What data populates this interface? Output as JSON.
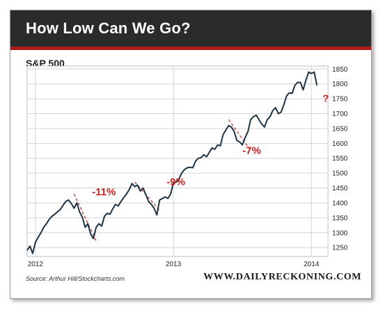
{
  "header": {
    "title": "How Low Can We Go?"
  },
  "footer": {
    "source": "Source:  Arthur Hill/Stockcharts.com",
    "brand": "WWW.DAILYRECKONING.COM"
  },
  "colors": {
    "banner": "#2b2b2b",
    "banner_rule": "#b11a1a",
    "line": "#1c3346",
    "annotation": "#d11f1f",
    "grid": "#d4d4d4"
  },
  "chart_data": {
    "type": "line",
    "title": "S&P 500",
    "xlabel": "",
    "ylabel": "",
    "xlim": [
      2011.94,
      2014.12
    ],
    "ylim": [
      1220,
      1860
    ],
    "y_ticks": [
      1250,
      1300,
      1350,
      1400,
      1450,
      1500,
      1550,
      1600,
      1650,
      1700,
      1750,
      1800,
      1850
    ],
    "x_ticks": [
      {
        "value": 2012,
        "label": "2012"
      },
      {
        "value": 2013,
        "label": "2013"
      },
      {
        "value": 2014,
        "label": "2014"
      }
    ],
    "grid": true,
    "y_axis_side": "right",
    "series": [
      {
        "x": [
          2011.94,
          2011.96,
          2011.98,
          2012.0,
          2012.02,
          2012.04,
          2012.06,
          2012.08,
          2012.1,
          2012.12,
          2012.14,
          2012.16,
          2012.18,
          2012.2,
          2012.22,
          2012.24,
          2012.26,
          2012.28,
          2012.3,
          2012.32,
          2012.34,
          2012.36,
          2012.38,
          2012.4,
          2012.42,
          2012.44,
          2012.46,
          2012.48,
          2012.5,
          2012.52,
          2012.54,
          2012.56,
          2012.58,
          2012.6,
          2012.62,
          2012.64,
          2012.66,
          2012.68,
          2012.7,
          2012.72,
          2012.74,
          2012.76,
          2012.78,
          2012.8,
          2012.82,
          2012.84,
          2012.86,
          2012.88,
          2012.9,
          2012.92,
          2012.94,
          2012.96,
          2012.98,
          2013.0,
          2013.02,
          2013.04,
          2013.06,
          2013.08,
          2013.1,
          2013.12,
          2013.14,
          2013.16,
          2013.18,
          2013.2,
          2013.22,
          2013.24,
          2013.26,
          2013.28,
          2013.3,
          2013.32,
          2013.34,
          2013.36,
          2013.38,
          2013.4,
          2013.42,
          2013.44,
          2013.46,
          2013.48,
          2013.5,
          2013.52,
          2013.54,
          2013.56,
          2013.58,
          2013.6,
          2013.62,
          2013.64,
          2013.66,
          2013.68,
          2013.7,
          2013.72,
          2013.74,
          2013.76,
          2013.78,
          2013.8,
          2013.82,
          2013.84,
          2013.86,
          2013.88,
          2013.9,
          2013.92,
          2013.94,
          2013.96,
          2013.98,
          2014.0,
          2014.02,
          2014.04
        ],
        "values": [
          1240,
          1255,
          1230,
          1268,
          1285,
          1300,
          1318,
          1330,
          1345,
          1355,
          1362,
          1370,
          1378,
          1392,
          1405,
          1410,
          1398,
          1382,
          1400,
          1370,
          1352,
          1318,
          1330,
          1295,
          1280,
          1318,
          1330,
          1322,
          1355,
          1365,
          1362,
          1380,
          1395,
          1390,
          1405,
          1418,
          1430,
          1445,
          1465,
          1455,
          1460,
          1440,
          1450,
          1428,
          1405,
          1395,
          1382,
          1360,
          1410,
          1415,
          1420,
          1415,
          1430,
          1468,
          1470,
          1480,
          1500,
          1512,
          1518,
          1520,
          1518,
          1540,
          1550,
          1552,
          1562,
          1555,
          1570,
          1585,
          1580,
          1595,
          1592,
          1630,
          1645,
          1660,
          1655,
          1640,
          1610,
          1605,
          1595,
          1620,
          1640,
          1680,
          1690,
          1695,
          1680,
          1665,
          1655,
          1680,
          1690,
          1710,
          1720,
          1700,
          1705,
          1730,
          1760,
          1770,
          1768,
          1795,
          1805,
          1805,
          1780,
          1812,
          1840,
          1835,
          1840,
          1795
        ]
      }
    ],
    "annotations": [
      {
        "text": "-11%",
        "x": 2012.41,
        "y": 1425
      },
      {
        "text": "-9%",
        "x": 2012.95,
        "y": 1460
      },
      {
        "text": "-7%",
        "x": 2013.5,
        "y": 1565
      },
      {
        "text": "?",
        "x": 2014.08,
        "y": 1740
      }
    ],
    "trend_lines": [
      {
        "x1": 2012.28,
        "y1": 1430,
        "x2": 2012.44,
        "y2": 1272
      },
      {
        "x1": 2012.72,
        "y1": 1470,
        "x2": 2012.9,
        "y2": 1375
      },
      {
        "x1": 2013.4,
        "y1": 1680,
        "x2": 2013.55,
        "y2": 1582
      }
    ]
  }
}
